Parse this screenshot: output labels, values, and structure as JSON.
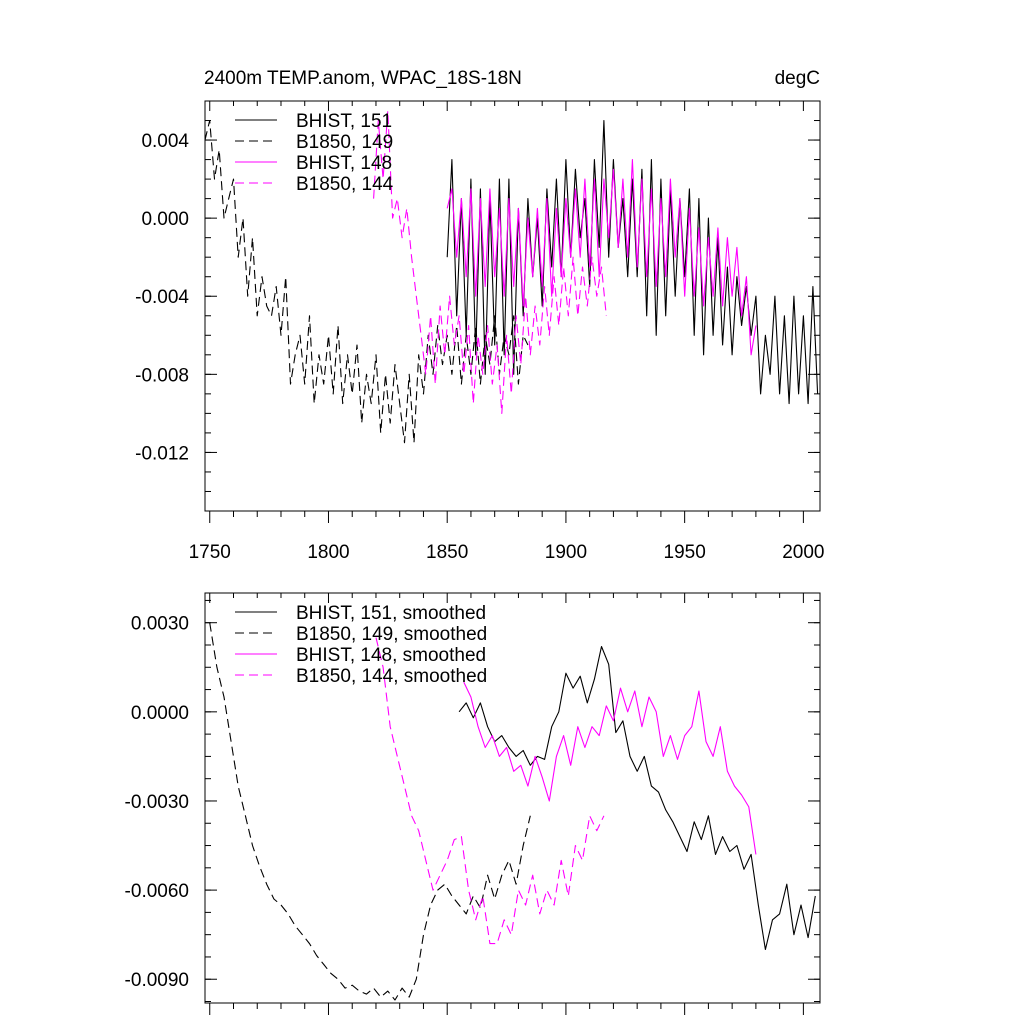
{
  "colors": {
    "black": "#000000",
    "magenta": "#ff00ff"
  },
  "chart_data": [
    {
      "type": "line",
      "title": "2400m TEMP.anom, WPAC_18S-18N",
      "units": "degC",
      "xlim": [
        1748,
        2007
      ],
      "ylim": [
        -0.015,
        0.006
      ],
      "xticks": [
        1750,
        1800,
        1850,
        1900,
        1950,
        2000
      ],
      "xtick_labels": [
        "1750",
        "1800",
        "1850",
        "1900",
        "1950",
        "2000"
      ],
      "yticks": [
        0.004,
        0.0,
        -0.004,
        -0.008,
        -0.012
      ],
      "ytick_labels": [
        "0.004",
        "0.000",
        "-0.004",
        "-0.008",
        "-0.012"
      ],
      "legend": "top-left",
      "series": [
        {
          "name": "BHIST, 151",
          "color": "#000000",
          "dash": "solid",
          "x": [
            1850,
            1852,
            1854,
            1856,
            1858,
            1860,
            1862,
            1864,
            1866,
            1868,
            1870,
            1872,
            1874,
            1876,
            1878,
            1880,
            1882,
            1884,
            1886,
            1888,
            1890,
            1892,
            1894,
            1896,
            1898,
            1900,
            1902,
            1904,
            1906,
            1908,
            1910,
            1912,
            1914,
            1916,
            1918,
            1920,
            1922,
            1924,
            1926,
            1928,
            1930,
            1932,
            1934,
            1936,
            1938,
            1940,
            1942,
            1944,
            1946,
            1948,
            1950,
            1952,
            1954,
            1956,
            1958,
            1960,
            1962,
            1964,
            1966,
            1968,
            1970,
            1972,
            1974,
            1976,
            1978,
            1980,
            1982,
            1984,
            1986,
            1988,
            1990,
            1992,
            1994,
            1996,
            1998,
            2000,
            2002,
            2004,
            2006
          ],
          "y": [
            -0.002,
            0.003,
            -0.005,
            0.001,
            -0.006,
            0.002,
            -0.007,
            0.0015,
            -0.008,
            0.001,
            -0.0065,
            0.002,
            -0.007,
            0.002,
            -0.008,
            0.0005,
            -0.005,
            0.001,
            -0.003,
            0.0,
            -0.0045,
            0.0015,
            -0.0025,
            0.002,
            -0.003,
            0.003,
            -0.002,
            0.0025,
            -0.001,
            0.001,
            -0.0035,
            0.003,
            -0.0015,
            0.005,
            -0.002,
            0.003,
            -0.0015,
            0.001,
            -0.003,
            0.002,
            -0.003,
            0.0025,
            -0.005,
            0.003,
            -0.006,
            0.002,
            -0.005,
            0.0015,
            -0.004,
            0.001,
            -0.003,
            0.0015,
            -0.006,
            0.001,
            -0.007,
            0.0,
            -0.006,
            -0.001,
            -0.0065,
            -0.0025,
            -0.007,
            -0.003,
            -0.0055,
            -0.0035,
            -0.006,
            -0.004,
            -0.009,
            -0.006,
            -0.008,
            -0.004,
            -0.009,
            -0.005,
            -0.0095,
            -0.004,
            -0.009,
            -0.005,
            -0.0095,
            -0.0035,
            -0.009
          ]
        },
        {
          "name": "B1850, 149",
          "color": "#000000",
          "dash": "dashed",
          "x": [
            1748,
            1750,
            1752,
            1754,
            1756,
            1758,
            1760,
            1762,
            1764,
            1766,
            1768,
            1770,
            1772,
            1774,
            1776,
            1778,
            1780,
            1782,
            1784,
            1786,
            1788,
            1790,
            1792,
            1794,
            1796,
            1798,
            1800,
            1802,
            1804,
            1806,
            1808,
            1810,
            1812,
            1814,
            1816,
            1818,
            1820,
            1822,
            1824,
            1826,
            1828,
            1830,
            1832,
            1834,
            1836,
            1838,
            1840,
            1842,
            1844,
            1846,
            1848,
            1850,
            1852,
            1854,
            1856,
            1858,
            1860,
            1862,
            1864,
            1866,
            1868,
            1870,
            1872,
            1874,
            1876,
            1878,
            1880,
            1882,
            1884
          ],
          "y": [
            0.004,
            0.005,
            0.002,
            0.0035,
            0.0,
            0.001,
            0.002,
            -0.002,
            0.0,
            -0.004,
            -0.001,
            -0.005,
            -0.003,
            -0.0045,
            -0.005,
            -0.0035,
            -0.006,
            -0.003,
            -0.0085,
            -0.007,
            -0.006,
            -0.0085,
            -0.005,
            -0.0095,
            -0.007,
            -0.0085,
            -0.006,
            -0.009,
            -0.0055,
            -0.0095,
            -0.007,
            -0.009,
            -0.0065,
            -0.0105,
            -0.008,
            -0.0095,
            -0.007,
            -0.011,
            -0.008,
            -0.0105,
            -0.0075,
            -0.0095,
            -0.0115,
            -0.008,
            -0.0115,
            -0.007,
            -0.009,
            -0.006,
            -0.008,
            -0.0055,
            -0.0075,
            -0.006,
            -0.008,
            -0.0055,
            -0.0085,
            -0.006,
            -0.008,
            -0.0055,
            -0.0085,
            -0.006,
            -0.0075,
            -0.005,
            -0.008,
            -0.006,
            -0.007,
            -0.005,
            -0.0085,
            -0.006,
            -0.0065
          ]
        },
        {
          "name": "BHIST, 148",
          "color": "#ff00ff",
          "dash": "solid",
          "x": [
            1850,
            1852,
            1854,
            1856,
            1858,
            1860,
            1862,
            1864,
            1866,
            1868,
            1870,
            1872,
            1874,
            1876,
            1878,
            1880,
            1882,
            1884,
            1886,
            1888,
            1890,
            1892,
            1894,
            1896,
            1898,
            1900,
            1902,
            1904,
            1906,
            1908,
            1910,
            1912,
            1914,
            1916,
            1918,
            1920,
            1922,
            1924,
            1926,
            1928,
            1930,
            1932,
            1934,
            1936,
            1938,
            1940,
            1942,
            1944,
            1946,
            1948,
            1950,
            1952,
            1954,
            1956,
            1958,
            1960,
            1962,
            1964,
            1966,
            1968,
            1970,
            1972,
            1974,
            1976,
            1978,
            1980
          ],
          "y": [
            0.0005,
            0.0015,
            -0.002,
            0.001,
            -0.003,
            0.0015,
            -0.004,
            0.001,
            -0.0035,
            0.0015,
            -0.003,
            0.0005,
            -0.004,
            0.001,
            -0.0035,
            0.0005,
            -0.0045,
            0.0,
            -0.003,
            0.0005,
            -0.0035,
            0.001,
            -0.004,
            0.0005,
            -0.003,
            0.001,
            -0.002,
            0.0015,
            -0.002,
            0.002,
            -0.0025,
            0.002,
            -0.003,
            0.002,
            -0.001,
            0.0025,
            -0.0015,
            0.002,
            -0.002,
            0.003,
            -0.0025,
            0.002,
            -0.003,
            0.0015,
            -0.0035,
            0.001,
            -0.003,
            0.002,
            -0.002,
            0.001,
            -0.004,
            0.0005,
            -0.004,
            -0.0005,
            -0.0045,
            -0.001,
            -0.004,
            -0.0005,
            -0.0045,
            -0.001,
            -0.004,
            -0.0015,
            -0.005,
            -0.003,
            -0.007,
            -0.0055
          ]
        },
        {
          "name": "B1850, 144",
          "color": "#ff00ff",
          "dash": "dashed",
          "x": [
            1819,
            1821,
            1823,
            1825,
            1827,
            1829,
            1831,
            1833,
            1835,
            1837,
            1839,
            1841,
            1843,
            1845,
            1847,
            1849,
            1851,
            1853,
            1855,
            1857,
            1859,
            1861,
            1863,
            1865,
            1867,
            1869,
            1871,
            1873,
            1875,
            1877,
            1879,
            1881,
            1883,
            1885,
            1887,
            1889,
            1891,
            1893,
            1895,
            1897,
            1899,
            1901,
            1903,
            1905,
            1907,
            1909,
            1911,
            1913,
            1915,
            1917
          ],
          "y": [
            0.001,
            0.005,
            0.002,
            0.0055,
            0.0,
            0.001,
            -0.001,
            0.0005,
            -0.002,
            -0.004,
            -0.006,
            -0.008,
            -0.005,
            -0.0085,
            -0.0045,
            -0.007,
            -0.004,
            -0.0065,
            -0.005,
            -0.008,
            -0.0055,
            -0.0095,
            -0.006,
            -0.008,
            -0.0055,
            -0.0085,
            -0.0065,
            -0.01,
            -0.006,
            -0.009,
            -0.005,
            -0.0075,
            -0.004,
            -0.007,
            -0.0045,
            -0.0065,
            -0.0035,
            -0.006,
            -0.003,
            -0.0055,
            -0.0025,
            -0.005,
            -0.002,
            -0.005,
            -0.0025,
            -0.0045,
            -0.002,
            -0.004,
            -0.0025,
            -0.005
          ]
        }
      ]
    },
    {
      "type": "line",
      "xlim": [
        1748,
        2007
      ],
      "ylim": [
        -0.0098,
        0.004
      ],
      "yticks": [
        0.003,
        0.0,
        -0.003,
        -0.006,
        -0.009
      ],
      "ytick_labels": [
        "0.0030",
        "0.0000",
        "-0.0030",
        "-0.0060",
        "-0.0090"
      ],
      "legend": "top-left",
      "series": [
        {
          "name": "BHIST, 151, smoothed",
          "color": "#000000",
          "dash": "solid",
          "x": [
            1855,
            1858,
            1861,
            1864,
            1867,
            1870,
            1873,
            1876,
            1879,
            1882,
            1885,
            1888,
            1891,
            1894,
            1897,
            1900,
            1903,
            1906,
            1909,
            1912,
            1915,
            1918,
            1921,
            1924,
            1927,
            1930,
            1933,
            1936,
            1939,
            1942,
            1945,
            1948,
            1951,
            1954,
            1957,
            1960,
            1963,
            1966,
            1969,
            1972,
            1975,
            1978,
            1981,
            1984,
            1987,
            1990,
            1993,
            1996,
            1999,
            2002,
            2005
          ],
          "y": [
            0.0,
            0.0003,
            -0.0002,
            0.0003,
            -0.0005,
            -0.001,
            -0.0008,
            -0.0012,
            -0.0015,
            -0.0013,
            -0.0018,
            -0.0015,
            -0.0016,
            -0.0005,
            0.0,
            0.0013,
            0.0008,
            0.0012,
            0.0003,
            0.0011,
            0.0022,
            0.0016,
            -0.0007,
            -0.0003,
            -0.0015,
            -0.002,
            -0.0015,
            -0.0025,
            -0.0027,
            -0.0033,
            -0.0037,
            -0.0042,
            -0.0047,
            -0.0037,
            -0.0043,
            -0.0035,
            -0.0048,
            -0.0042,
            -0.0047,
            -0.0045,
            -0.0053,
            -0.0048,
            -0.0065,
            -0.008,
            -0.007,
            -0.0068,
            -0.0058,
            -0.0075,
            -0.0065,
            -0.0076,
            -0.0062
          ]
        },
        {
          "name": "B1850, 149, smoothed",
          "color": "#000000",
          "dash": "dashed",
          "x": [
            1750,
            1753,
            1756,
            1759,
            1762,
            1765,
            1768,
            1771,
            1774,
            1777,
            1780,
            1783,
            1786,
            1789,
            1792,
            1795,
            1798,
            1801,
            1804,
            1807,
            1810,
            1813,
            1816,
            1819,
            1822,
            1825,
            1828,
            1831,
            1834,
            1837,
            1840,
            1843,
            1846,
            1849,
            1852,
            1855,
            1858,
            1861,
            1864,
            1867,
            1870,
            1873,
            1876,
            1879,
            1882,
            1885
          ],
          "y": [
            0.003,
            0.0015,
            0.0005,
            -0.001,
            -0.0025,
            -0.0035,
            -0.0045,
            -0.0052,
            -0.0058,
            -0.0063,
            -0.0065,
            -0.0068,
            -0.0072,
            -0.0075,
            -0.0078,
            -0.0082,
            -0.0085,
            -0.0088,
            -0.009,
            -0.0093,
            -0.0092,
            -0.0094,
            -0.0095,
            -0.0093,
            -0.0096,
            -0.0094,
            -0.0097,
            -0.0093,
            -0.0096,
            -0.009,
            -0.0075,
            -0.0065,
            -0.006,
            -0.0058,
            -0.0062,
            -0.0065,
            -0.0068,
            -0.0062,
            -0.0066,
            -0.0055,
            -0.0063,
            -0.0055,
            -0.005,
            -0.0058,
            -0.0045,
            -0.0035
          ]
        },
        {
          "name": "BHIST, 148, smoothed",
          "color": "#ff00ff",
          "dash": "solid",
          "x": [
            1857,
            1860,
            1863,
            1866,
            1869,
            1872,
            1875,
            1878,
            1881,
            1884,
            1887,
            1890,
            1893,
            1896,
            1899,
            1902,
            1905,
            1908,
            1911,
            1914,
            1917,
            1920,
            1923,
            1926,
            1929,
            1932,
            1935,
            1938,
            1941,
            1944,
            1947,
            1950,
            1953,
            1956,
            1959,
            1962,
            1965,
            1968,
            1971,
            1974,
            1977,
            1980
          ],
          "y": [
            0.001,
            0.0005,
            -0.0005,
            -0.0012,
            -0.0008,
            -0.0015,
            -0.0012,
            -0.002,
            -0.0018,
            -0.0025,
            -0.0015,
            -0.0022,
            -0.003,
            -0.0015,
            -0.0008,
            -0.0018,
            -0.0005,
            -0.0012,
            -0.0005,
            -0.0008,
            0.0002,
            -0.0003,
            0.0008,
            0.0,
            0.0007,
            -0.0005,
            0.0005,
            0.0,
            -0.0015,
            -0.0008,
            -0.0016,
            -0.0008,
            -0.0005,
            0.0007,
            -0.001,
            -0.0015,
            -0.0005,
            -0.002,
            -0.0025,
            -0.0028,
            -0.0032,
            -0.0048
          ]
        },
        {
          "name": "B1850, 144, smoothed",
          "color": "#ff00ff",
          "dash": "dashed",
          "x": [
            1820,
            1823,
            1826,
            1829,
            1832,
            1835,
            1838,
            1841,
            1844,
            1847,
            1850,
            1853,
            1856,
            1859,
            1862,
            1865,
            1868,
            1871,
            1874,
            1877,
            1880,
            1883,
            1886,
            1889,
            1892,
            1895,
            1898,
            1901,
            1904,
            1907,
            1910,
            1913,
            1916
          ],
          "y": [
            0.0025,
            0.0015,
            -0.0005,
            -0.0015,
            -0.0025,
            -0.0035,
            -0.004,
            -0.005,
            -0.006,
            -0.0055,
            -0.005,
            -0.0043,
            -0.0042,
            -0.006,
            -0.007,
            -0.0062,
            -0.0078,
            -0.0078,
            -0.007,
            -0.0075,
            -0.006,
            -0.0065,
            -0.0055,
            -0.0068,
            -0.006,
            -0.0065,
            -0.005,
            -0.0062,
            -0.0045,
            -0.005,
            -0.0035,
            -0.004,
            -0.0035
          ]
        }
      ]
    }
  ]
}
